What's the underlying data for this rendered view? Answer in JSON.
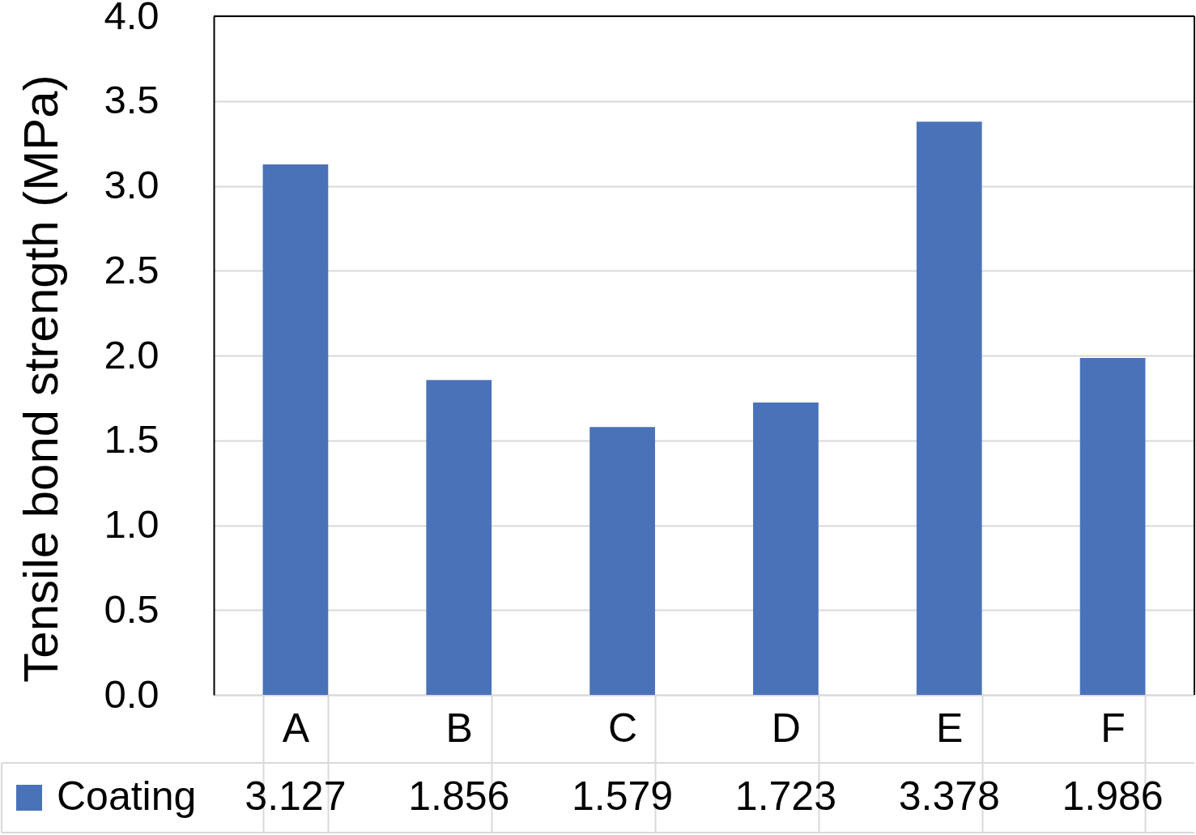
{
  "chart_data": {
    "type": "bar",
    "ylabel": "Tensile bond strength (MPa)",
    "categories": [
      "A",
      "B",
      "C",
      "D",
      "E",
      "F"
    ],
    "series": [
      {
        "name": "Coating",
        "color": "#4a72b8",
        "values": [
          3.127,
          1.856,
          1.579,
          1.723,
          3.378,
          1.986
        ]
      }
    ],
    "ylim": [
      0,
      4
    ],
    "yticks": [
      {
        "value": 0,
        "label": "0.0"
      },
      0.5,
      {
        "value": 1,
        "label": "1.0"
      },
      1.5,
      {
        "value": 2,
        "label": "2.0"
      },
      2.5,
      {
        "value": 3,
        "label": "3.0"
      },
      3.5,
      {
        "value": 4,
        "label": "4.0"
      }
    ],
    "grid": "y",
    "data_labels": true,
    "legend": "bottom left"
  }
}
